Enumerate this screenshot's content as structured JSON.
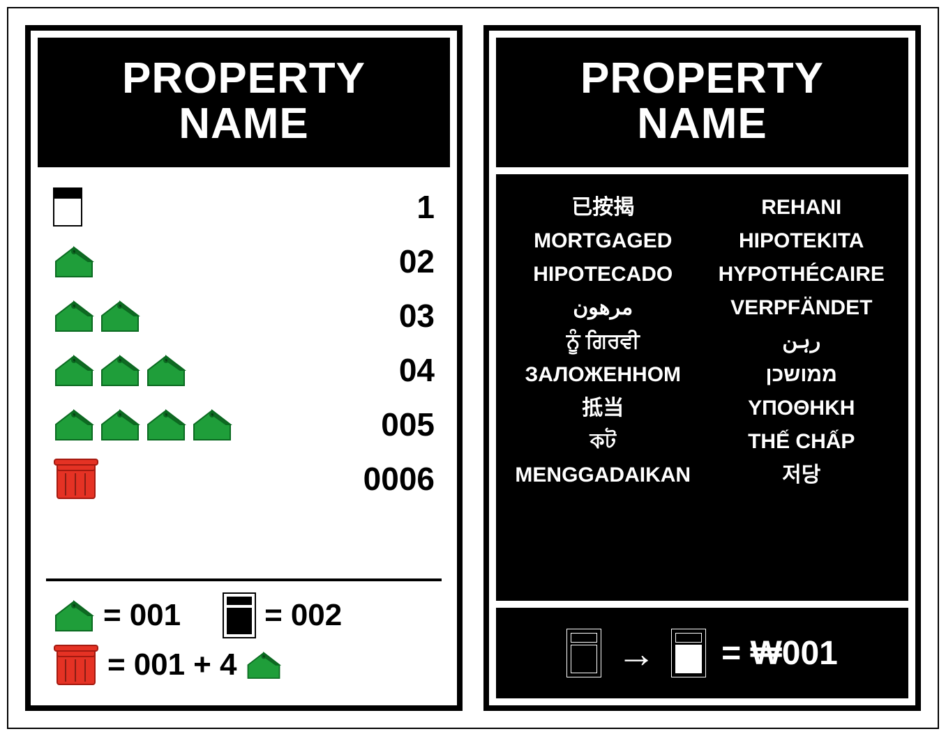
{
  "front": {
    "title_line1": "PROPERTY",
    "title_line2": "NAME",
    "rows": [
      {
        "type": "deed",
        "count": 1,
        "value": "1"
      },
      {
        "type": "house",
        "count": 1,
        "value": "02"
      },
      {
        "type": "house",
        "count": 2,
        "value": "03"
      },
      {
        "type": "house",
        "count": 3,
        "value": "04"
      },
      {
        "type": "house",
        "count": 4,
        "value": "005"
      },
      {
        "type": "hotel",
        "count": 1,
        "value": "0006"
      }
    ],
    "costs": {
      "house_cost": "001",
      "deed_cost": "002",
      "hotel_cost": "001",
      "hotel_plus": "+ 4"
    }
  },
  "back": {
    "title_line1": "PROPERTY",
    "title_line2": "NAME",
    "mortgaged_col1": [
      "已按揭",
      "MORTGAGED",
      "HIPOTECADO",
      "مرهون",
      "ਨੂੰ ਗਿਰਵੀ",
      "ЗАЛОЖЕННОМ",
      "抵当",
      "কট",
      "MENGGADAIKAN"
    ],
    "mortgaged_col2": [
      "REHANI",
      "HIPOTEKITA",
      "HYPOTHÉCAIRE",
      "VERPFÄNDET",
      "رہن",
      "ממושכן",
      "ΥΠΟΘΗΚΗ",
      "THẾ CHẤP",
      "저당"
    ],
    "unmortgage_label": "= ₩001"
  },
  "colors": {
    "house_fill": "#1f9e3a",
    "house_stroke": "#0a6a20",
    "hotel_fill": "#e53224",
    "hotel_stroke": "#a31a10"
  }
}
